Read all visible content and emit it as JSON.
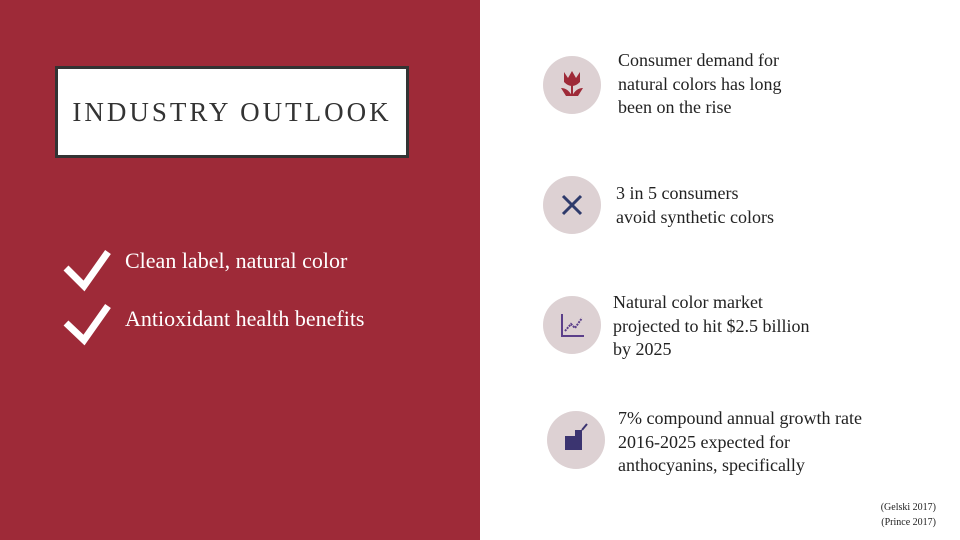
{
  "header": {
    "title": "INDUSTRY OUTLOOK"
  },
  "checklist": [
    "Clean label, natural color",
    "Antioxidant health benefits"
  ],
  "facts": [
    {
      "lines": [
        "Consumer demand for",
        "natural colors has long",
        "been on the rise"
      ]
    },
    {
      "lines": [
        "3 in 5 consumers",
        "avoid synthetic colors"
      ]
    },
    {
      "lines": [
        "Natural color market",
        "projected to hit $2.5 billion",
        "by 2025"
      ]
    },
    {
      "lines": [
        "7% compound annual growth rate",
        "2016-2025 expected for",
        "anthocyanins, specifically"
      ]
    }
  ],
  "citations": [
    "(Gelski 2017)",
    "(Prince 2017)"
  ]
}
